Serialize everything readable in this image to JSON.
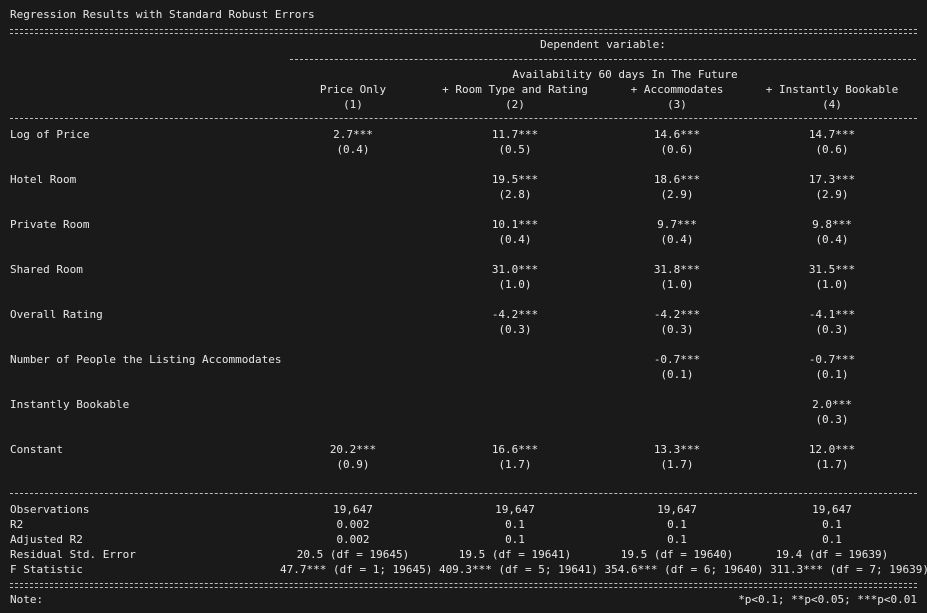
{
  "title": "Regression Results with Standard Robust Errors",
  "header": {
    "dependent_label": "Dependent variable:",
    "dependent_name": "Availability 60 days In The Future",
    "columns": [
      {
        "name": "Price Only",
        "num": "(1)"
      },
      {
        "name": "+ Room Type and Rating",
        "num": "(2)"
      },
      {
        "name": "+ Accommodates",
        "num": "(3)"
      },
      {
        "name": "+ Instantly Bookable",
        "num": "(4)"
      }
    ]
  },
  "rows": [
    {
      "label": "Log of Price",
      "coef": [
        "2.7***",
        "11.7***",
        "14.6***",
        "14.7***"
      ],
      "se": [
        "(0.4)",
        "(0.5)",
        "(0.6)",
        "(0.6)"
      ]
    },
    {
      "label": "Hotel Room",
      "coef": [
        "",
        "19.5***",
        "18.6***",
        "17.3***"
      ],
      "se": [
        "",
        "(2.8)",
        "(2.9)",
        "(2.9)"
      ]
    },
    {
      "label": "Private Room",
      "coef": [
        "",
        "10.1***",
        "9.7***",
        "9.8***"
      ],
      "se": [
        "",
        "(0.4)",
        "(0.4)",
        "(0.4)"
      ]
    },
    {
      "label": "Shared Room",
      "coef": [
        "",
        "31.0***",
        "31.8***",
        "31.5***"
      ],
      "se": [
        "",
        "(1.0)",
        "(1.0)",
        "(1.0)"
      ]
    },
    {
      "label": "Overall Rating",
      "coef": [
        "",
        "-4.2***",
        "-4.2***",
        "-4.1***"
      ],
      "se": [
        "",
        "(0.3)",
        "(0.3)",
        "(0.3)"
      ]
    },
    {
      "label": "Number of People the Listing Accommodates",
      "coef": [
        "",
        "",
        "-0.7***",
        "-0.7***"
      ],
      "se": [
        "",
        "",
        "(0.1)",
        "(0.1)"
      ]
    },
    {
      "label": "Instantly Bookable",
      "coef": [
        "",
        "",
        "",
        "2.0***"
      ],
      "se": [
        "",
        "",
        "",
        "(0.3)"
      ]
    },
    {
      "label": "Constant",
      "coef": [
        "20.2***",
        "16.6***",
        "13.3***",
        "12.0***"
      ],
      "se": [
        "(0.9)",
        "(1.7)",
        "(1.7)",
        "(1.7)"
      ]
    }
  ],
  "stats": [
    {
      "label": "Observations",
      "vals": [
        "19,647",
        "19,647",
        "19,647",
        "19,647"
      ]
    },
    {
      "label": "R2",
      "vals": [
        "0.002",
        "0.1",
        "0.1",
        "0.1"
      ]
    },
    {
      "label": "Adjusted R2",
      "vals": [
        "0.002",
        "0.1",
        "0.1",
        "0.1"
      ]
    },
    {
      "label": "Residual Std. Error",
      "vals": [
        "20.5 (df = 19645)",
        "19.5 (df = 19641)",
        "19.5 (df = 19640)",
        "19.4 (df = 19639)"
      ]
    }
  ],
  "fstat": {
    "label": "F Statistic",
    "text": "47.7*** (df = 1; 19645) 409.3*** (df = 5; 19641) 354.6*** (df = 6; 19640) 311.3*** (df = 7; 19639)"
  },
  "note": {
    "label": "Note:",
    "text": "*p<0.1; **p<0.05; ***p<0.01"
  }
}
